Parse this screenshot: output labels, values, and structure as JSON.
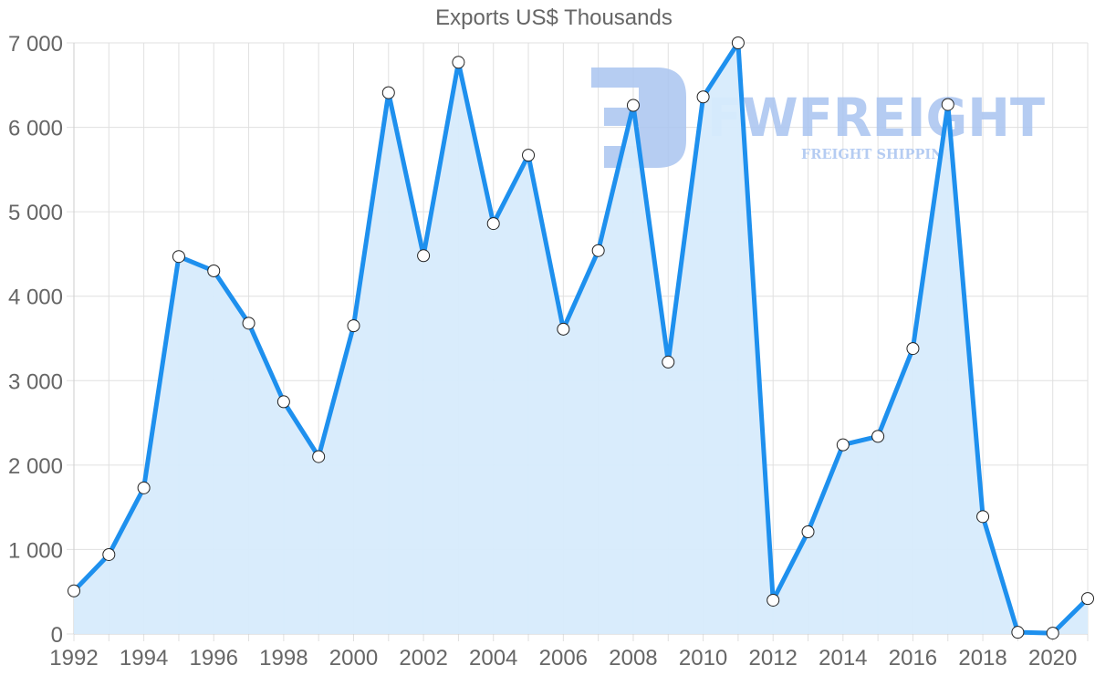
{
  "chart_data": {
    "type": "area",
    "title": "Exports US$ Thousands",
    "xlabel": "",
    "ylabel": "",
    "ylim": [
      0,
      7000
    ],
    "y_ticks": [
      "0",
      "1 000",
      "2 000",
      "3 000",
      "4 000",
      "5 000",
      "6 000",
      "7 000"
    ],
    "x_tick_labels": [
      "1992",
      "1994",
      "1996",
      "1998",
      "2000",
      "2002",
      "2004",
      "2006",
      "2008",
      "2010",
      "2012",
      "2014",
      "2016",
      "2018",
      "2020"
    ],
    "grid": true,
    "legend": "none",
    "x": [
      1992,
      1993,
      1994,
      1995,
      1996,
      1997,
      1998,
      1999,
      2000,
      2001,
      2002,
      2003,
      2004,
      2005,
      2006,
      2007,
      2008,
      2009,
      2010,
      2011,
      2012,
      2013,
      2014,
      2015,
      2016,
      2017,
      2018,
      2019,
      2020,
      2021
    ],
    "series": [
      {
        "name": "Exports US$ Thousands",
        "values": [
          510,
          940,
          1730,
          4470,
          4300,
          3680,
          2750,
          2100,
          3650,
          6410,
          4480,
          6770,
          4860,
          5670,
          3610,
          4540,
          6260,
          3220,
          6360,
          7000,
          400,
          1210,
          2240,
          2340,
          3380,
          6270,
          1390,
          20,
          10,
          420
        ]
      }
    ],
    "colors": {
      "line": "#1e90ee",
      "fill": "#d7ebfc",
      "point_fill": "#ffffff",
      "point_stroke": "#222222",
      "grid": "#e0e0e0",
      "text": "#666666"
    }
  },
  "watermark": {
    "brand": "FWFREIGHT",
    "tagline": "FREIGHT SHIPPING",
    "color": "#a9c4f0"
  }
}
